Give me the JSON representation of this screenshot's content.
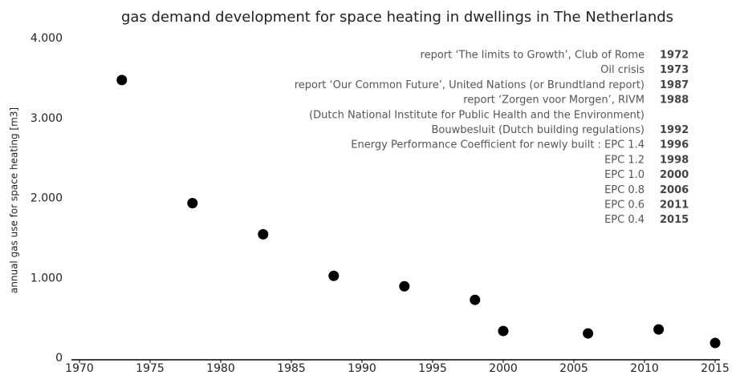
{
  "chart_data": {
    "type": "scatter",
    "title": "gas demand development for space heating in dwellings in The Netherlands",
    "y_label": "annual gas use for space heating [m3]",
    "x": [
      1973,
      1978,
      1983,
      1988,
      1993,
      1998,
      2000,
      2006,
      2011,
      2015
    ],
    "values": [
      3500,
      1960,
      1570,
      1050,
      920,
      750,
      360,
      330,
      380,
      210
    ],
    "color": "#000000",
    "xlim": [
      1970,
      2015
    ],
    "xticks": [
      1970,
      1975,
      1980,
      1985,
      1990,
      1995,
      2000,
      2005,
      2010,
      2015
    ],
    "ylim": [
      0,
      4000
    ],
    "yticks": [
      0,
      {
        "value": 1000,
        "label": "1.000"
      },
      {
        "value": 2000,
        "label": "2.000"
      },
      {
        "value": 3000,
        "label": "3.000"
      },
      {
        "value": 4000,
        "label": "4.000"
      }
    ],
    "grid": false,
    "annotations": [
      {
        "text": "report ‘The limits to Growth’, Club of Rome",
        "year": "1972"
      },
      {
        "text": "Oil crisis",
        "year": "1973"
      },
      {
        "text": "report ‘Our Common Future’, United Nations (or Brundtland report)",
        "year": "1987"
      },
      {
        "text": "report ‘Zorgen voor Morgen’, RIVM",
        "year": "1988"
      },
      {
        "text": "(Dutch National Institute for Public Health and the Environment)"
      },
      {
        "text": "Bouwbesluit (Dutch building regulations)",
        "year": "1992"
      },
      {
        "text": "Energy Performance Coefficient for newly built : EPC 1.4",
        "year": "1996"
      },
      {
        "text": "EPC 1.2",
        "year": "1998"
      },
      {
        "text": "EPC 1.0",
        "year": "2000"
      },
      {
        "text": "EPC 0.8",
        "year": "2006"
      },
      {
        "text": "EPC 0.6",
        "year": "2011"
      },
      {
        "text": "EPC 0.4",
        "year": "2015"
      }
    ]
  }
}
